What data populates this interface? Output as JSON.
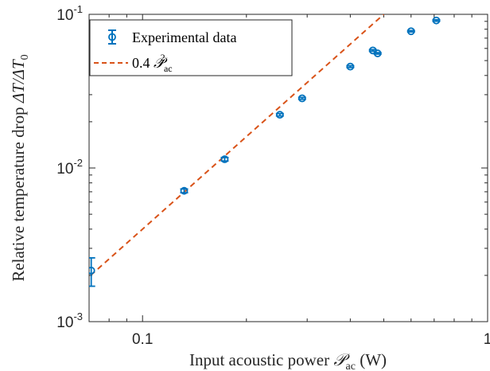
{
  "chart_data": {
    "type": "scatter",
    "xlabel": "Input acoustic power 𝒫ac (W)",
    "ylabel": "Relative temperature drop ΔT/ΔT0",
    "xscale": "log",
    "yscale": "log",
    "xlim": [
      0.07,
      1
    ],
    "ylim": [
      0.001,
      0.1
    ],
    "x_ticks": [
      {
        "value": 0.1,
        "label": "0.1"
      },
      {
        "value": 1,
        "label": "1"
      }
    ],
    "y_ticks": [
      {
        "value": 0.001,
        "base": "10",
        "exp": "-3"
      },
      {
        "value": 0.01,
        "base": "10",
        "exp": "-2"
      },
      {
        "value": 0.1,
        "base": "10",
        "exp": "-1"
      }
    ],
    "grid": false,
    "legend_position": "top-left",
    "series": [
      {
        "name": "Experimental data",
        "kind": "errorbar",
        "color": "#0072BD",
        "marker": "circle",
        "x": [
          0.071,
          0.132,
          0.173,
          0.25,
          0.29,
          0.4,
          0.465,
          0.48,
          0.6,
          0.71
        ],
        "y": [
          0.00215,
          0.0071,
          0.0114,
          0.0222,
          0.0284,
          0.0457,
          0.0582,
          0.0557,
          0.0776,
          0.0912
        ],
        "y_lower": [
          0.0017,
          0.0069,
          0.0111,
          0.0218,
          0.028,
          0.0451,
          0.0575,
          0.0551,
          0.0768,
          0.0902
        ],
        "y_upper": [
          0.0026,
          0.0073,
          0.0117,
          0.0226,
          0.0288,
          0.0463,
          0.0589,
          0.0563,
          0.0784,
          0.0922
        ]
      },
      {
        "name": "0.4 𝒫ac²",
        "kind": "line",
        "style": "dashed",
        "color": "#D95319",
        "coefficient": 0.4,
        "exponent": 2,
        "x": [
          0.0707,
          0.5
        ]
      }
    ]
  },
  "legend": {
    "items": [
      {
        "text": "Experimental data"
      },
      {
        "prefix": "0.4 ",
        "symbol": "𝒫",
        "sub": "ac",
        "sup": "2"
      }
    ]
  },
  "labels": {
    "xlabel": {
      "pre": "Input acoustic power ",
      "symbol": "𝒫",
      "sub": "ac",
      "post": " (W)"
    },
    "ylabel": {
      "pre": "Relative temperature drop ",
      "expr": "ΔT/ΔT",
      "sub": "0"
    }
  }
}
